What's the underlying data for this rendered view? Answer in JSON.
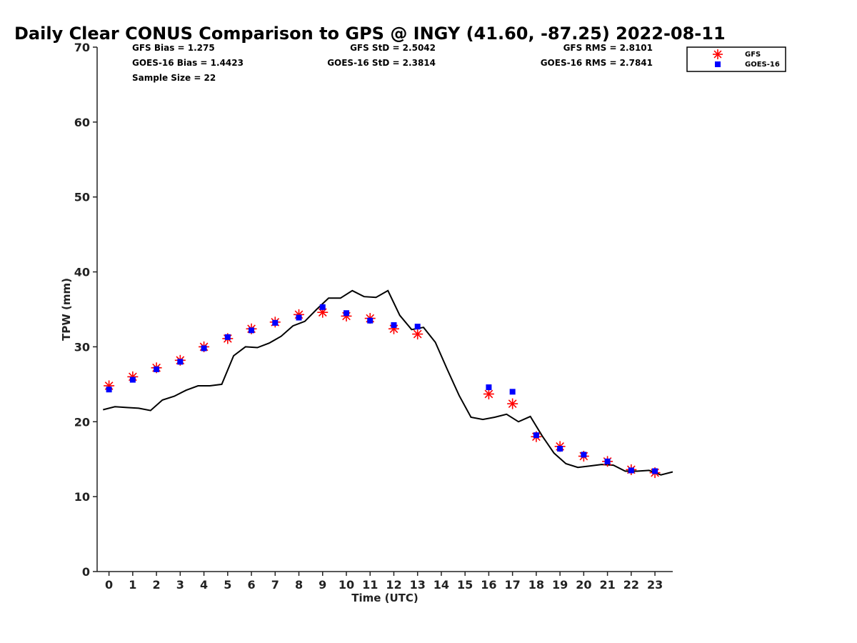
{
  "chart_data": {
    "type": "scatter",
    "title": "Daily Clear CONUS Comparison to GPS @ INGY (41.60, -87.25) 2022-08-11",
    "xlabel": "Time (UTC)",
    "ylabel": "TPW (mm)",
    "xlim": [
      -0.5,
      23.75
    ],
    "ylim": [
      0,
      70
    ],
    "x_ticks": [
      "0",
      "1",
      "2",
      "3",
      "4",
      "5",
      "6",
      "7",
      "8",
      "9",
      "10",
      "11",
      "12",
      "13",
      "14",
      "15",
      "16",
      "17",
      "18",
      "19",
      "20",
      "21",
      "22",
      "23"
    ],
    "y_ticks": [
      "0",
      "10",
      "20",
      "30",
      "40",
      "50",
      "60",
      "70"
    ],
    "stats": {
      "gfs_bias": "GFS Bias = 1.275",
      "goes_bias": "GOES-16 Bias = 1.4423",
      "sample_size": "Sample Size = 22",
      "gfs_std": "GFS StD = 2.5042",
      "goes_std": "GOES-16 StD = 2.3814",
      "gfs_rms": "GFS RMS = 2.8101",
      "goes_rms": "GOES-16 RMS = 2.7841"
    },
    "legend": {
      "position": "top-right",
      "entries": [
        "GFS",
        "GOES-16"
      ]
    },
    "series": [
      {
        "name": "GFS",
        "marker": "asterisk",
        "color": "#ff0000",
        "points": [
          [
            0,
            24.8
          ],
          [
            1,
            26.0
          ],
          [
            2,
            27.2
          ],
          [
            3,
            28.2
          ],
          [
            4,
            30.0
          ],
          [
            5,
            31.1
          ],
          [
            6,
            32.4
          ],
          [
            7,
            33.3
          ],
          [
            8,
            34.3
          ],
          [
            9,
            34.6
          ],
          [
            10,
            34.1
          ],
          [
            11,
            33.8
          ],
          [
            12,
            32.4
          ],
          [
            13,
            31.7
          ],
          [
            16,
            23.7
          ],
          [
            17,
            22.4
          ],
          [
            18,
            18.0
          ],
          [
            19,
            16.7
          ],
          [
            20,
            15.4
          ],
          [
            21,
            14.7
          ],
          [
            22,
            13.6
          ],
          [
            23,
            13.2
          ]
        ]
      },
      {
        "name": "GOES-16",
        "marker": "square",
        "color": "#0000ff",
        "points": [
          [
            0,
            24.3
          ],
          [
            1,
            25.6
          ],
          [
            2,
            27.0
          ],
          [
            3,
            28.0
          ],
          [
            4,
            29.8
          ],
          [
            5,
            31.3
          ],
          [
            6,
            32.2
          ],
          [
            7,
            33.2
          ],
          [
            8,
            33.9
          ],
          [
            9,
            35.3
          ],
          [
            10,
            34.5
          ],
          [
            11,
            33.5
          ],
          [
            12,
            32.9
          ],
          [
            13,
            32.7
          ],
          [
            16,
            24.6
          ],
          [
            17,
            24.0
          ],
          [
            18,
            18.2
          ],
          [
            19,
            16.4
          ],
          [
            20,
            15.6
          ],
          [
            21,
            14.7
          ],
          [
            22,
            13.5
          ],
          [
            23,
            13.4
          ]
        ]
      },
      {
        "name": "GPS",
        "marker": "line",
        "color": "#000000",
        "points": [
          [
            -0.25,
            21.6
          ],
          [
            0.25,
            22.0
          ],
          [
            0.75,
            21.9
          ],
          [
            1.25,
            21.8
          ],
          [
            1.75,
            21.5
          ],
          [
            2.25,
            22.9
          ],
          [
            2.75,
            23.4
          ],
          [
            3.25,
            24.2
          ],
          [
            3.75,
            24.8
          ],
          [
            4.25,
            24.8
          ],
          [
            4.75,
            25.0
          ],
          [
            5.25,
            28.8
          ],
          [
            5.75,
            30.0
          ],
          [
            6.25,
            29.9
          ],
          [
            6.75,
            30.5
          ],
          [
            7.25,
            31.4
          ],
          [
            7.75,
            32.8
          ],
          [
            8.25,
            33.4
          ],
          [
            8.75,
            35.0
          ],
          [
            9.25,
            36.5
          ],
          [
            9.75,
            36.5
          ],
          [
            10.25,
            37.5
          ],
          [
            10.75,
            36.7
          ],
          [
            11.25,
            36.6
          ],
          [
            11.75,
            37.5
          ],
          [
            12.25,
            34.2
          ],
          [
            12.75,
            32.3
          ],
          [
            13.25,
            32.6
          ],
          [
            13.75,
            30.6
          ],
          [
            14.25,
            27.0
          ],
          [
            14.75,
            23.5
          ],
          [
            15.25,
            20.6
          ],
          [
            15.75,
            20.3
          ],
          [
            16.25,
            20.6
          ],
          [
            16.75,
            21.0
          ],
          [
            17.25,
            20.0
          ],
          [
            17.75,
            20.7
          ],
          [
            18.25,
            18.1
          ],
          [
            18.75,
            15.8
          ],
          [
            19.25,
            14.4
          ],
          [
            19.75,
            13.9
          ],
          [
            20.25,
            14.1
          ],
          [
            20.75,
            14.3
          ],
          [
            21.25,
            14.2
          ],
          [
            21.75,
            13.4
          ],
          [
            22.25,
            13.4
          ],
          [
            22.75,
            13.5
          ],
          [
            23.25,
            12.9
          ],
          [
            23.75,
            13.3
          ]
        ]
      }
    ]
  }
}
